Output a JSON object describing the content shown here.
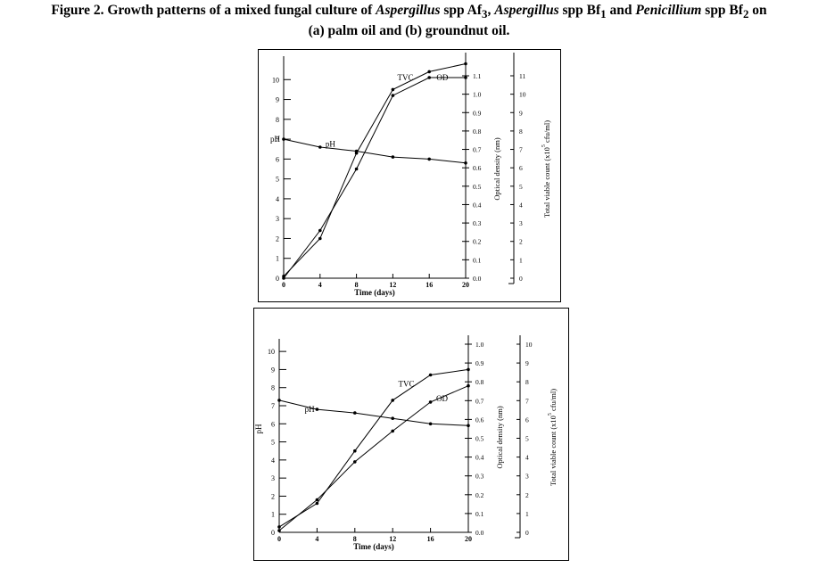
{
  "figure": {
    "caption_prefix": "Figure 2. Growth patterns of a mixed fungal culture of ",
    "genus1": "Aspergillus",
    "spp1": " spp Af",
    "sub1": "3",
    "genus2": "Aspergillus",
    "spp2": " spp Bf",
    "sub2": "1",
    "and_text": " and ",
    "genus3": "Penicillium",
    "spp3": " spp Bf",
    "sub3": "2",
    "on_text": " on",
    "line2": "(a) palm oil and (b) groundnut oil."
  },
  "chart_data": [
    {
      "type": "line",
      "panel": "a",
      "xlabel": "Time (days)",
      "ylabel_left": "pH",
      "ylabel_right1": "Optical density (nm)",
      "ylabel_right2": "Total viable count (x10 5 cfu/ml)",
      "x": [
        0,
        4,
        8,
        12,
        16,
        20
      ],
      "x_ticks": [
        "0",
        "4",
        "8",
        "12",
        "16",
        "20"
      ],
      "xlim": [
        0,
        20
      ],
      "ylim_left": [
        0,
        11
      ],
      "left_ticks": [
        "0",
        "1",
        "2",
        "3",
        "4",
        "5",
        "6",
        "7",
        "8",
        "9",
        "10"
      ],
      "od_ticks": [
        "0.0",
        "0.1",
        "0.2",
        "0.3",
        "0.4",
        "0.5",
        "0.6",
        "0.7",
        "0.8",
        "0.9",
        "1.0",
        "1.1"
      ],
      "tvc_ticks": [
        "0",
        "1",
        "2",
        "3",
        "4",
        "5",
        "6",
        "7",
        "8",
        "9",
        "10",
        "11"
      ],
      "series": [
        {
          "name": "TVC",
          "values": [
            0.1,
            2.0,
            6.3,
            9.5,
            10.4,
            10.8
          ]
        },
        {
          "name": "OD",
          "values": [
            0.0,
            2.4,
            5.5,
            9.2,
            10.1,
            10.1
          ]
        },
        {
          "name": "pH",
          "values": [
            7.0,
            6.6,
            6.4,
            6.1,
            6.0,
            5.8
          ]
        }
      ],
      "annotations": [
        {
          "text": "pH",
          "x": 0,
          "y": 7.0,
          "anchor": "left-axis"
        },
        {
          "text": "pH",
          "x": 4.6,
          "y": 6.75
        },
        {
          "text": "TVC",
          "x": 12.5,
          "y": 10.1
        },
        {
          "text": "OD",
          "x": 16.8,
          "y": 10.1
        }
      ]
    },
    {
      "type": "line",
      "panel": "b",
      "xlabel": "Time (days)",
      "ylabel_left": "pH",
      "ylabel_right1": "Optical density (nm)",
      "ylabel_right2": "Total viable count (x10 5 cfu/ml)",
      "x": [
        0,
        4,
        8,
        12,
        16,
        20
      ],
      "x_ticks": [
        "0",
        "4",
        "8",
        "12",
        "16",
        "20"
      ],
      "xlim": [
        0,
        20
      ],
      "ylim_left": [
        0,
        10.5
      ],
      "left_ticks": [
        "0",
        "1",
        "2",
        "3",
        "4",
        "5",
        "6",
        "7",
        "8",
        "9",
        "10"
      ],
      "od_ticks": [
        "0.0",
        "0.1",
        "0.2",
        "0.3",
        "0.4",
        "0.5",
        "0.6",
        "0.7",
        "0.8",
        "0.9",
        "1.0"
      ],
      "tvc_ticks": [
        "0",
        "1",
        "2",
        "3",
        "4",
        "5",
        "6",
        "7",
        "8",
        "9",
        "10"
      ],
      "series": [
        {
          "name": "TVC",
          "values": [
            0.3,
            1.6,
            4.5,
            7.3,
            8.7,
            9.0
          ]
        },
        {
          "name": "OD",
          "values": [
            0.1,
            1.8,
            3.9,
            5.6,
            7.2,
            8.1
          ]
        },
        {
          "name": "pH",
          "values": [
            7.3,
            6.8,
            6.6,
            6.3,
            6.0,
            5.9
          ]
        }
      ],
      "annotations": [
        {
          "text": "pH",
          "x": 2.7,
          "y": 6.8
        },
        {
          "text": "TVC",
          "x": 12.6,
          "y": 8.2
        },
        {
          "text": "OD",
          "x": 16.6,
          "y": 7.4
        }
      ]
    }
  ]
}
